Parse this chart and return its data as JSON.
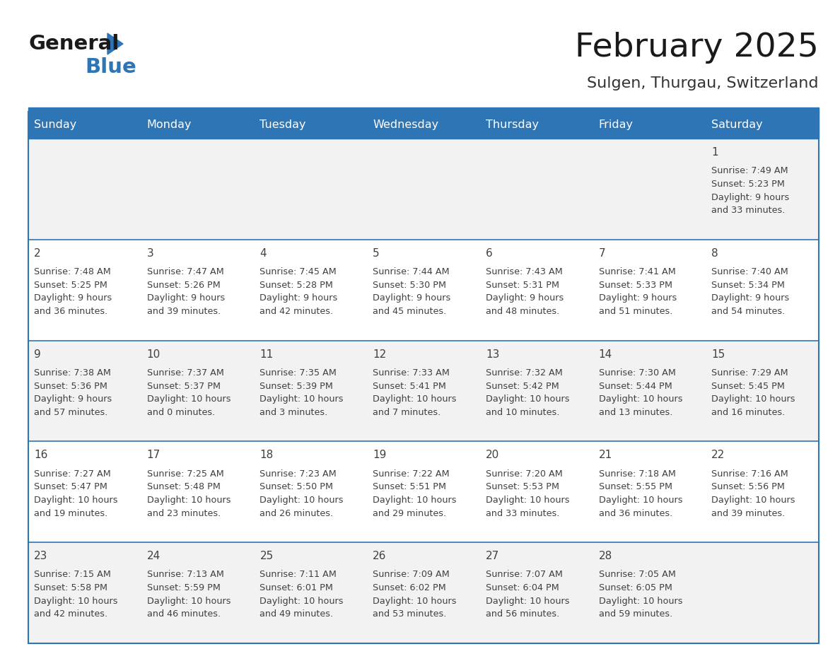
{
  "title": "February 2025",
  "subtitle": "Sulgen, Thurgau, Switzerland",
  "header_bg": "#2E75B6",
  "header_text_color": "#FFFFFF",
  "cell_bg_odd": "#F2F2F2",
  "cell_bg_even": "#FFFFFF",
  "day_number_color": "#404040",
  "text_color": "#404040",
  "line_color": "#2E75B6",
  "logo_black": "#1a1a1a",
  "logo_blue": "#2E75B6",
  "days_of_week": [
    "Sunday",
    "Monday",
    "Tuesday",
    "Wednesday",
    "Thursday",
    "Friday",
    "Saturday"
  ],
  "calendar_data": [
    [
      null,
      null,
      null,
      null,
      null,
      null,
      {
        "day": "1",
        "sunrise": "7:49 AM",
        "sunset": "5:23 PM",
        "daylight_line1": "Daylight: 9 hours",
        "daylight_line2": "and 33 minutes."
      }
    ],
    [
      {
        "day": "2",
        "sunrise": "7:48 AM",
        "sunset": "5:25 PM",
        "daylight_line1": "Daylight: 9 hours",
        "daylight_line2": "and 36 minutes."
      },
      {
        "day": "3",
        "sunrise": "7:47 AM",
        "sunset": "5:26 PM",
        "daylight_line1": "Daylight: 9 hours",
        "daylight_line2": "and 39 minutes."
      },
      {
        "day": "4",
        "sunrise": "7:45 AM",
        "sunset": "5:28 PM",
        "daylight_line1": "Daylight: 9 hours",
        "daylight_line2": "and 42 minutes."
      },
      {
        "day": "5",
        "sunrise": "7:44 AM",
        "sunset": "5:30 PM",
        "daylight_line1": "Daylight: 9 hours",
        "daylight_line2": "and 45 minutes."
      },
      {
        "day": "6",
        "sunrise": "7:43 AM",
        "sunset": "5:31 PM",
        "daylight_line1": "Daylight: 9 hours",
        "daylight_line2": "and 48 minutes."
      },
      {
        "day": "7",
        "sunrise": "7:41 AM",
        "sunset": "5:33 PM",
        "daylight_line1": "Daylight: 9 hours",
        "daylight_line2": "and 51 minutes."
      },
      {
        "day": "8",
        "sunrise": "7:40 AM",
        "sunset": "5:34 PM",
        "daylight_line1": "Daylight: 9 hours",
        "daylight_line2": "and 54 minutes."
      }
    ],
    [
      {
        "day": "9",
        "sunrise": "7:38 AM",
        "sunset": "5:36 PM",
        "daylight_line1": "Daylight: 9 hours",
        "daylight_line2": "and 57 minutes."
      },
      {
        "day": "10",
        "sunrise": "7:37 AM",
        "sunset": "5:37 PM",
        "daylight_line1": "Daylight: 10 hours",
        "daylight_line2": "and 0 minutes."
      },
      {
        "day": "11",
        "sunrise": "7:35 AM",
        "sunset": "5:39 PM",
        "daylight_line1": "Daylight: 10 hours",
        "daylight_line2": "and 3 minutes."
      },
      {
        "day": "12",
        "sunrise": "7:33 AM",
        "sunset": "5:41 PM",
        "daylight_line1": "Daylight: 10 hours",
        "daylight_line2": "and 7 minutes."
      },
      {
        "day": "13",
        "sunrise": "7:32 AM",
        "sunset": "5:42 PM",
        "daylight_line1": "Daylight: 10 hours",
        "daylight_line2": "and 10 minutes."
      },
      {
        "day": "14",
        "sunrise": "7:30 AM",
        "sunset": "5:44 PM",
        "daylight_line1": "Daylight: 10 hours",
        "daylight_line2": "and 13 minutes."
      },
      {
        "day": "15",
        "sunrise": "7:29 AM",
        "sunset": "5:45 PM",
        "daylight_line1": "Daylight: 10 hours",
        "daylight_line2": "and 16 minutes."
      }
    ],
    [
      {
        "day": "16",
        "sunrise": "7:27 AM",
        "sunset": "5:47 PM",
        "daylight_line1": "Daylight: 10 hours",
        "daylight_line2": "and 19 minutes."
      },
      {
        "day": "17",
        "sunrise": "7:25 AM",
        "sunset": "5:48 PM",
        "daylight_line1": "Daylight: 10 hours",
        "daylight_line2": "and 23 minutes."
      },
      {
        "day": "18",
        "sunrise": "7:23 AM",
        "sunset": "5:50 PM",
        "daylight_line1": "Daylight: 10 hours",
        "daylight_line2": "and 26 minutes."
      },
      {
        "day": "19",
        "sunrise": "7:22 AM",
        "sunset": "5:51 PM",
        "daylight_line1": "Daylight: 10 hours",
        "daylight_line2": "and 29 minutes."
      },
      {
        "day": "20",
        "sunrise": "7:20 AM",
        "sunset": "5:53 PM",
        "daylight_line1": "Daylight: 10 hours",
        "daylight_line2": "and 33 minutes."
      },
      {
        "day": "21",
        "sunrise": "7:18 AM",
        "sunset": "5:55 PM",
        "daylight_line1": "Daylight: 10 hours",
        "daylight_line2": "and 36 minutes."
      },
      {
        "day": "22",
        "sunrise": "7:16 AM",
        "sunset": "5:56 PM",
        "daylight_line1": "Daylight: 10 hours",
        "daylight_line2": "and 39 minutes."
      }
    ],
    [
      {
        "day": "23",
        "sunrise": "7:15 AM",
        "sunset": "5:58 PM",
        "daylight_line1": "Daylight: 10 hours",
        "daylight_line2": "and 42 minutes."
      },
      {
        "day": "24",
        "sunrise": "7:13 AM",
        "sunset": "5:59 PM",
        "daylight_line1": "Daylight: 10 hours",
        "daylight_line2": "and 46 minutes."
      },
      {
        "day": "25",
        "sunrise": "7:11 AM",
        "sunset": "6:01 PM",
        "daylight_line1": "Daylight: 10 hours",
        "daylight_line2": "and 49 minutes."
      },
      {
        "day": "26",
        "sunrise": "7:09 AM",
        "sunset": "6:02 PM",
        "daylight_line1": "Daylight: 10 hours",
        "daylight_line2": "and 53 minutes."
      },
      {
        "day": "27",
        "sunrise": "7:07 AM",
        "sunset": "6:04 PM",
        "daylight_line1": "Daylight: 10 hours",
        "daylight_line2": "and 56 minutes."
      },
      {
        "day": "28",
        "sunrise": "7:05 AM",
        "sunset": "6:05 PM",
        "daylight_line1": "Daylight: 10 hours",
        "daylight_line2": "and 59 minutes."
      },
      null
    ]
  ]
}
